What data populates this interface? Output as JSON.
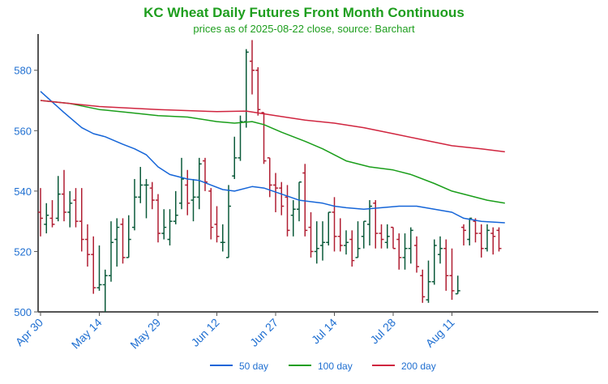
{
  "chart_data": {
    "type": "ohlc",
    "title": "KC Wheat Daily Futures Front Month Continuous",
    "subtitle": "prices as of 2025-08-22 close, source: Barchart",
    "ylim": [
      500,
      592
    ],
    "yticks": [
      500,
      520,
      540,
      560,
      580
    ],
    "xtick_labels": [
      "Apr 30",
      "May 14",
      "May 29",
      "Jun 12",
      "Jun 27",
      "Jul 14",
      "Jul 28",
      "Aug 11"
    ],
    "xtick_indices": [
      0,
      10,
      20,
      30,
      40,
      50,
      60,
      70
    ],
    "colors": {
      "up": "#0b5a3a",
      "down": "#b01e32",
      "ma50": "#1565d8",
      "ma100": "#1a9e1a",
      "ma200": "#d0253f",
      "axis": "#555555",
      "tick_text": "#1f6fd1"
    },
    "legend": {
      "placement": "bottom-center",
      "entries": [
        "50 day",
        "100 day",
        "200 day"
      ]
    },
    "ohlc": [
      [
        533,
        541,
        525,
        531
      ],
      [
        529,
        536,
        526,
        532
      ],
      [
        531,
        537,
        528,
        529
      ],
      [
        531,
        545,
        530,
        539
      ],
      [
        539,
        547,
        530,
        533
      ],
      [
        533,
        540,
        528,
        536
      ],
      [
        537,
        541,
        528,
        530
      ],
      [
        530,
        541,
        520,
        524
      ],
      [
        524,
        529,
        515,
        519
      ],
      [
        519,
        525,
        506,
        508
      ],
      [
        508,
        522,
        507,
        509
      ],
      [
        509,
        514,
        500,
        512
      ],
      [
        512,
        530,
        510,
        523
      ],
      [
        524,
        531,
        515,
        528
      ],
      [
        529,
        531,
        516,
        518
      ],
      [
        518,
        532,
        518,
        524
      ],
      [
        528,
        544,
        527,
        538
      ],
      [
        538,
        548,
        536,
        542
      ],
      [
        542,
        544,
        531,
        542
      ],
      [
        541,
        543,
        534,
        537
      ],
      [
        537,
        539,
        523,
        526
      ],
      [
        526,
        534,
        524,
        528
      ],
      [
        524,
        534,
        522,
        530
      ],
      [
        530,
        540,
        529,
        532
      ],
      [
        536,
        551,
        534,
        544
      ],
      [
        542,
        547,
        532,
        536
      ],
      [
        537,
        544,
        530,
        538
      ],
      [
        538,
        551,
        534,
        549
      ],
      [
        550,
        551,
        540,
        543
      ],
      [
        540,
        541,
        524,
        528
      ],
      [
        529,
        535,
        523,
        525
      ],
      [
        523,
        529,
        520,
        523
      ],
      [
        518,
        542,
        518,
        535
      ],
      [
        545,
        558,
        544,
        551
      ],
      [
        551,
        565,
        550,
        563
      ],
      [
        563,
        587,
        561,
        586
      ],
      [
        583,
        590,
        572,
        580
      ],
      [
        580,
        581,
        565,
        567
      ],
      [
        566,
        566,
        549,
        550
      ],
      [
        551,
        551,
        538,
        542
      ],
      [
        542,
        546,
        533,
        541
      ],
      [
        541,
        543,
        532,
        535
      ],
      [
        538,
        542,
        525,
        527
      ],
      [
        532,
        537,
        525,
        534
      ],
      [
        534,
        543,
        530,
        543
      ],
      [
        546,
        549,
        525,
        527
      ],
      [
        528,
        533,
        518,
        520
      ],
      [
        520,
        530,
        516,
        521
      ],
      [
        522,
        530,
        517,
        523
      ],
      [
        523,
        533,
        522,
        533
      ],
      [
        533,
        538,
        520,
        525
      ],
      [
        525,
        531,
        520,
        522
      ],
      [
        522,
        527,
        519,
        523
      ],
      [
        524,
        527,
        515,
        517
      ],
      [
        518,
        530,
        518,
        521
      ],
      [
        525,
        530,
        521,
        530
      ],
      [
        529,
        537,
        522,
        535
      ],
      [
        536,
        537,
        521,
        526
      ],
      [
        526,
        529,
        521,
        524
      ],
      [
        523,
        529,
        521,
        525
      ],
      [
        528,
        528,
        521,
        521
      ],
      [
        524,
        526,
        514,
        518
      ],
      [
        518,
        526,
        514,
        521
      ],
      [
        521,
        528,
        516,
        527
      ],
      [
        522,
        525,
        513,
        515
      ],
      [
        512,
        514,
        503,
        505
      ],
      [
        504,
        517,
        503,
        510
      ],
      [
        510,
        524,
        509,
        522
      ],
      [
        519,
        525,
        516,
        521
      ],
      [
        521,
        524,
        507,
        512
      ],
      [
        512,
        521,
        504,
        507
      ],
      [
        506,
        512,
        506,
        507
      ],
      [
        528,
        529,
        522,
        527
      ],
      [
        524,
        531,
        522,
        531
      ],
      [
        530,
        531,
        523,
        526
      ],
      [
        526,
        529,
        518,
        521
      ],
      [
        521,
        529,
        520,
        527
      ],
      [
        526,
        528,
        519,
        525
      ],
      [
        527,
        528,
        520,
        521
      ]
    ],
    "ma50": [
      [
        0,
        573
      ],
      [
        2,
        569.5
      ],
      [
        4,
        566
      ],
      [
        7,
        561
      ],
      [
        9,
        559
      ],
      [
        11,
        558
      ],
      [
        14,
        555.5
      ],
      [
        16,
        554
      ],
      [
        18,
        552
      ],
      [
        20,
        548
      ],
      [
        22,
        545.5
      ],
      [
        25,
        544
      ],
      [
        27,
        543.5
      ],
      [
        29,
        542
      ],
      [
        31,
        540.5
      ],
      [
        33,
        540
      ],
      [
        36,
        541.5
      ],
      [
        38,
        541
      ],
      [
        41,
        539
      ],
      [
        44,
        537
      ],
      [
        48,
        536
      ],
      [
        50,
        535
      ],
      [
        52,
        534.5
      ],
      [
        55,
        534
      ],
      [
        58,
        534.5
      ],
      [
        61,
        535
      ],
      [
        64,
        535
      ],
      [
        67,
        534
      ],
      [
        70,
        533
      ],
      [
        72,
        531
      ],
      [
        75,
        530
      ],
      [
        79,
        529.5
      ]
    ],
    "ma100": [
      [
        0,
        570
      ],
      [
        5,
        569
      ],
      [
        10,
        567
      ],
      [
        15,
        566
      ],
      [
        20,
        565
      ],
      [
        25,
        564.5
      ],
      [
        30,
        563
      ],
      [
        33,
        562.5
      ],
      [
        36,
        563
      ],
      [
        38,
        562
      ],
      [
        41,
        559.5
      ],
      [
        45,
        556.5
      ],
      [
        48,
        554
      ],
      [
        52,
        550
      ],
      [
        56,
        548
      ],
      [
        60,
        547
      ],
      [
        63,
        545.5
      ],
      [
        67,
        542.5
      ],
      [
        70,
        540
      ],
      [
        73,
        538.5
      ],
      [
        76,
        537
      ],
      [
        79,
        536
      ]
    ],
    "ma200": [
      [
        0,
        570
      ],
      [
        5,
        569
      ],
      [
        10,
        568
      ],
      [
        20,
        567
      ],
      [
        30,
        566.3
      ],
      [
        35,
        566.5
      ],
      [
        40,
        565
      ],
      [
        45,
        563.5
      ],
      [
        50,
        562.5
      ],
      [
        55,
        561
      ],
      [
        60,
        559
      ],
      [
        65,
        557
      ],
      [
        70,
        555
      ],
      [
        75,
        554
      ],
      [
        79,
        553
      ]
    ]
  }
}
